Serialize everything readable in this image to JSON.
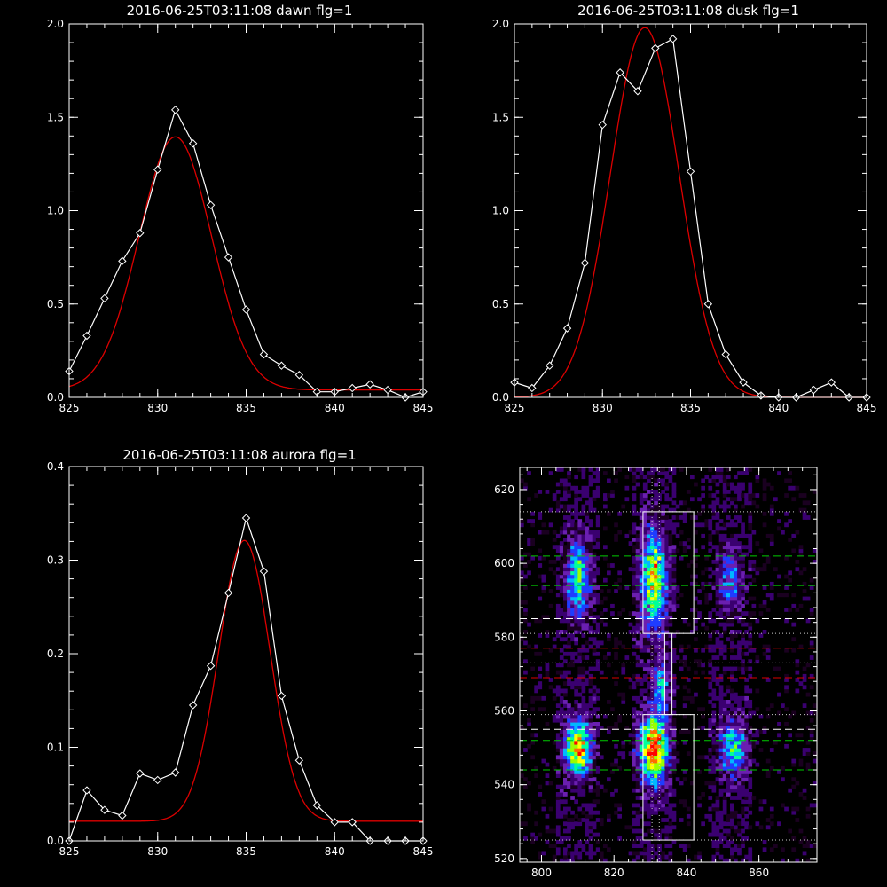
{
  "chart_data": [
    {
      "type": "line",
      "title": "2016-06-25T03:11:08 dawn flg=1",
      "xlim": [
        825,
        845
      ],
      "ylim": [
        0,
        2.0
      ],
      "xticks": [
        825,
        830,
        835,
        840,
        845
      ],
      "yticks": [
        0.0,
        0.5,
        1.0,
        1.5,
        2.0
      ],
      "xtick_labels": [
        "825",
        "830",
        "835",
        "840",
        "845"
      ],
      "ytick_labels": [
        "0.0",
        "0.5",
        "1.0",
        "1.5",
        "2.0"
      ],
      "series": [
        {
          "style": "data",
          "color": "#ffffff",
          "marker": "diamond",
          "x": [
            825,
            826,
            827,
            828,
            829,
            830,
            831,
            832,
            833,
            834,
            835,
            836,
            837,
            838,
            839,
            840,
            841,
            842,
            843,
            844,
            845
          ],
          "y": [
            0.14,
            0.33,
            0.53,
            0.73,
            0.88,
            1.22,
            1.54,
            1.36,
            1.03,
            0.75,
            0.47,
            0.23,
            0.17,
            0.12,
            0.03,
            0.03,
            0.05,
            0.07,
            0.04,
            0.0,
            0.03
          ]
        },
        {
          "style": "fit",
          "color": "#dd0000",
          "model": "gaussian",
          "amplitude": 1.355,
          "center": 831.0,
          "sigma": 2.05,
          "offset": 0.04
        }
      ]
    },
    {
      "type": "line",
      "title": "2016-06-25T03:11:08 dusk flg=1",
      "xlim": [
        825,
        845
      ],
      "ylim": [
        0,
        2.0
      ],
      "xticks": [
        825,
        830,
        835,
        840,
        845
      ],
      "yticks": [
        0.0,
        0.5,
        1.0,
        1.5,
        2.0
      ],
      "xtick_labels": [
        "825",
        "830",
        "835",
        "840",
        "845"
      ],
      "ytick_labels": [
        "0.0",
        "0.5",
        "1.0",
        "1.5",
        "2.0"
      ],
      "series": [
        {
          "style": "data",
          "color": "#ffffff",
          "marker": "diamond",
          "x": [
            825,
            826,
            827,
            828,
            829,
            830,
            831,
            832,
            833,
            834,
            835,
            836,
            837,
            838,
            839,
            840,
            841,
            842,
            843,
            844,
            845
          ],
          "y": [
            0.08,
            0.05,
            0.17,
            0.37,
            0.72,
            1.46,
            1.74,
            1.64,
            1.87,
            1.92,
            1.21,
            0.5,
            0.23,
            0.08,
            0.01,
            0.0,
            0.0,
            0.04,
            0.08,
            0.0,
            0.0
          ]
        },
        {
          "style": "fit",
          "color": "#dd0000",
          "model": "gaussian",
          "amplitude": 1.98,
          "center": 832.4,
          "sigma": 1.95,
          "offset": 0.0
        }
      ]
    },
    {
      "type": "line",
      "title": "2016-06-25T03:11:08 aurora flg=1",
      "xlim": [
        825,
        845
      ],
      "ylim": [
        0,
        0.4
      ],
      "xticks": [
        825,
        830,
        835,
        840,
        845
      ],
      "yticks": [
        0.0,
        0.1,
        0.2,
        0.3,
        0.4
      ],
      "xtick_labels": [
        "825",
        "830",
        "835",
        "840",
        "845"
      ],
      "ytick_labels": [
        "0.0",
        "0.1",
        "0.2",
        "0.3",
        "0.4"
      ],
      "series": [
        {
          "style": "data",
          "color": "#ffffff",
          "marker": "diamond",
          "x": [
            825,
            826,
            827,
            828,
            829,
            830,
            831,
            832,
            833,
            834,
            835,
            836,
            837,
            838,
            839,
            840,
            841,
            842,
            843,
            844,
            845
          ],
          "y": [
            0.0,
            0.054,
            0.033,
            0.027,
            0.072,
            0.065,
            0.073,
            0.145,
            0.187,
            0.265,
            0.345,
            0.288,
            0.155,
            0.086,
            0.038,
            0.02,
            0.02,
            0.0,
            0.0,
            0.0,
            0.0
          ]
        },
        {
          "style": "fit",
          "color": "#dd0000",
          "model": "gaussian",
          "amplitude": 0.3,
          "center": 834.9,
          "sigma": 1.45,
          "offset": 0.021
        }
      ]
    },
    {
      "type": "heatmap",
      "xlim": [
        794,
        876
      ],
      "ylim": [
        519,
        626
      ],
      "xticks": [
        800,
        820,
        840,
        860
      ],
      "yticks": [
        520,
        540,
        560,
        580,
        600,
        620
      ],
      "xtick_labels": [
        "800",
        "820",
        "840",
        "860"
      ],
      "ytick_labels": [
        "520",
        "540",
        "560",
        "580",
        "600",
        "620"
      ],
      "colormap": [
        "#1a0020",
        "#3a0070",
        "#6a1fb0",
        "#1f3cff",
        "#00b8ff",
        "#00ff9a",
        "#9aff00",
        "#ffff00",
        "#ff6a00",
        "#ff0000"
      ],
      "blobs": [
        {
          "x": 810,
          "y": 596,
          "sx": 2.2,
          "sy": 7,
          "peak": 0.55
        },
        {
          "x": 810,
          "y": 550,
          "sx": 2.4,
          "sy": 5,
          "peak": 0.85
        },
        {
          "x": 831,
          "y": 596,
          "sx": 2.5,
          "sy": 9,
          "peak": 0.72
        },
        {
          "x": 831,
          "y": 550,
          "sx": 2.6,
          "sy": 6,
          "peak": 1.0
        },
        {
          "x": 833,
          "y": 567,
          "sx": 1.5,
          "sy": 5,
          "peak": 0.4
        },
        {
          "x": 852,
          "y": 596,
          "sx": 2.3,
          "sy": 6,
          "peak": 0.32
        },
        {
          "x": 853,
          "y": 550,
          "sx": 2.6,
          "sy": 5,
          "peak": 0.5
        }
      ],
      "boxes": [
        {
          "x0": 828,
          "x1": 842,
          "y0": 581,
          "y1": 614
        },
        {
          "x0": 828,
          "x1": 842,
          "y0": 525,
          "y1": 559
        },
        {
          "x0": 834,
          "x1": 836,
          "y0": 559,
          "y1": 581
        }
      ],
      "hlines": [
        {
          "y": 614,
          "color": "#cccccc",
          "dash": "1,3"
        },
        {
          "y": 602,
          "color": "#00cc00",
          "dash": "8,5"
        },
        {
          "y": 594,
          "color": "#00cc00",
          "dash": "8,5"
        },
        {
          "y": 585,
          "color": "#ffffff",
          "dash": "8,5"
        },
        {
          "y": 581,
          "color": "#cccccc",
          "dash": "1,3"
        },
        {
          "y": 577,
          "color": "#dd0000",
          "dash": "8,5"
        },
        {
          "y": 573,
          "color": "#cccccc",
          "dash": "1,3"
        },
        {
          "y": 569,
          "color": "#dd0000",
          "dash": "8,5"
        },
        {
          "y": 559,
          "color": "#cccccc",
          "dash": "1,3"
        },
        {
          "y": 555,
          "color": "#ffffff",
          "dash": "8,5"
        },
        {
          "y": 552,
          "color": "#00cc00",
          "dash": "8,5"
        },
        {
          "y": 544,
          "color": "#00cc00",
          "dash": "8,5"
        },
        {
          "y": 525,
          "color": "#cccccc",
          "dash": "1,3"
        }
      ],
      "vlines": [
        {
          "x": 830.5,
          "color": "#cccccc",
          "dash": "1,3"
        },
        {
          "x": 832.5,
          "color": "#cccccc",
          "dash": "1,3"
        }
      ]
    }
  ]
}
